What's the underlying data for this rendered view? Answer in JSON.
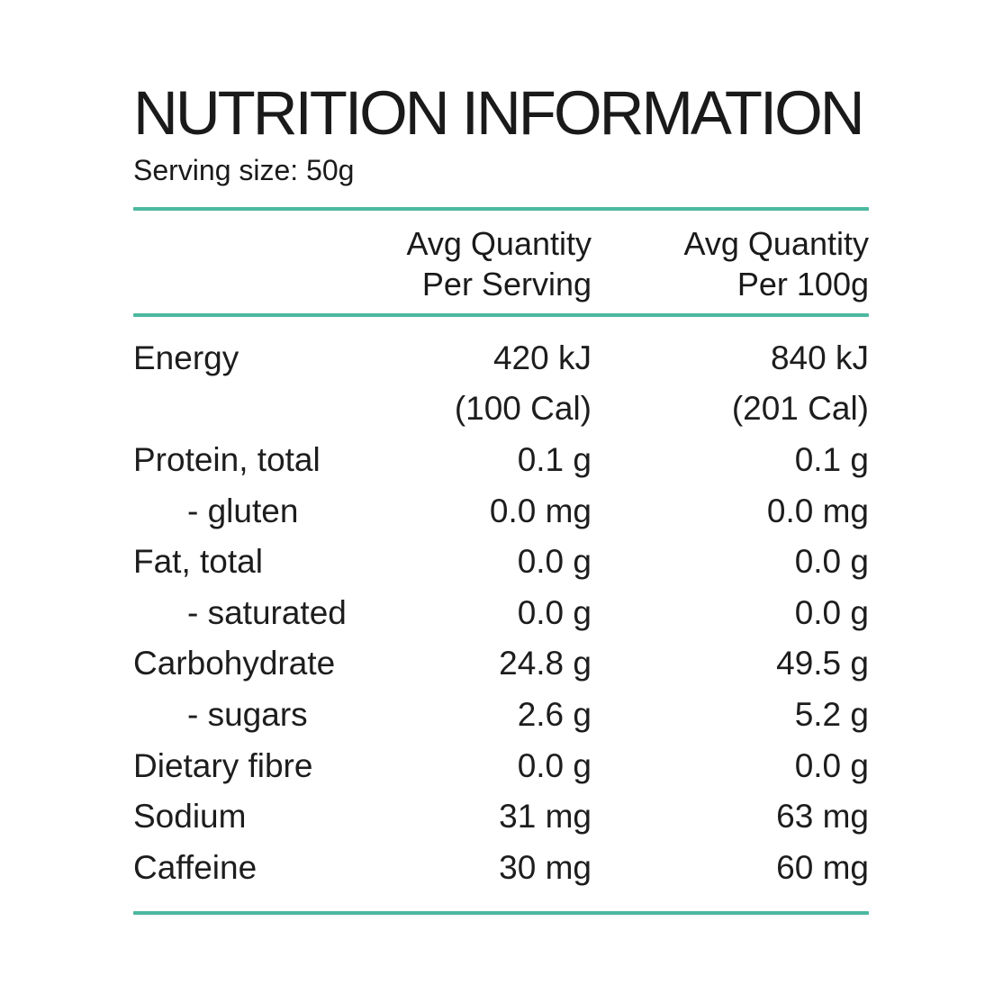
{
  "colors": {
    "accent": "#4cb8a0",
    "text": "#1d1d1d"
  },
  "title": "NUTRITION INFORMATION",
  "serving_size": "Serving size: 50g",
  "table": {
    "columns": [
      {
        "line1": "Avg Quantity",
        "line2": "Per Serving"
      },
      {
        "line1": "Avg Quantity",
        "line2": "Per 100g"
      }
    ],
    "rows": [
      {
        "label": "Energy",
        "serving": "420 kJ",
        "per100g": "840 kJ",
        "indent": false
      },
      {
        "label": "",
        "serving": "(100 Cal)",
        "per100g": "(201 Cal)",
        "indent": false
      },
      {
        "label": "Protein, total",
        "serving": "0.1 g",
        "per100g": "0.1 g",
        "indent": false
      },
      {
        "label": "- gluten",
        "serving": "0.0 mg",
        "per100g": "0.0 mg",
        "indent": true
      },
      {
        "label": "Fat, total",
        "serving": "0.0 g",
        "per100g": "0.0 g",
        "indent": false
      },
      {
        "label": "- saturated",
        "serving": "0.0 g",
        "per100g": "0.0 g",
        "indent": true
      },
      {
        "label": "Carbohydrate",
        "serving": "24.8 g",
        "per100g": "49.5 g",
        "indent": false
      },
      {
        "label": "- sugars",
        "serving": "2.6 g",
        "per100g": "5.2 g",
        "indent": true
      },
      {
        "label": "Dietary fibre",
        "serving": "0.0 g",
        "per100g": "0.0 g",
        "indent": false
      },
      {
        "label": "Sodium",
        "serving": "31 mg",
        "per100g": "63 mg",
        "indent": false
      },
      {
        "label": "Caffeine",
        "serving": "30 mg",
        "per100g": "60 mg",
        "indent": false
      }
    ]
  }
}
